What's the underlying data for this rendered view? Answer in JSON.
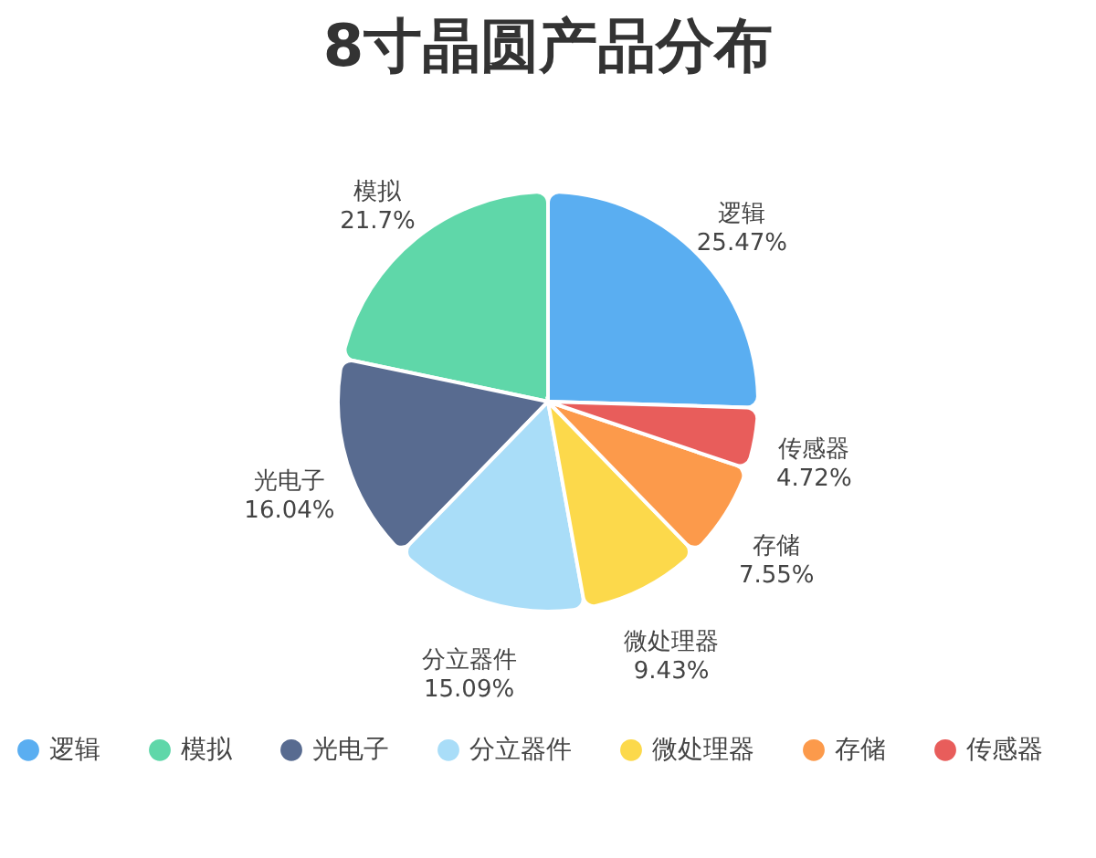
{
  "chart_data": {
    "type": "pie",
    "title": "8寸晶圆产品分布",
    "categories": [
      "逻辑",
      "模拟",
      "光电子",
      "分立器件",
      "微处理器",
      "存储",
      "传感器"
    ],
    "values": [
      25.47,
      21.7,
      16.04,
      15.09,
      9.43,
      7.55,
      4.72
    ],
    "value_labels": [
      "25.47%",
      "21.7%",
      "16.04%",
      "15.09%",
      "9.43%",
      "7.55%",
      "4.72%"
    ],
    "colors": [
      "#5aaef1",
      "#5fd7a9",
      "#586b90",
      "#a9ddf8",
      "#fcd94b",
      "#fc9a4b",
      "#e85d5b"
    ],
    "legend": "bottom"
  }
}
